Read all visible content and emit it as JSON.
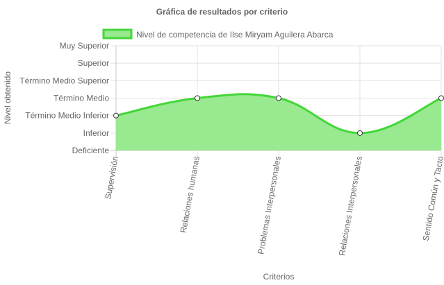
{
  "chart_data": {
    "type": "area",
    "title": "Gráfica de resultados por criterio",
    "xlabel": "Criterios",
    "ylabel": "Nivel obtenido",
    "categories": [
      "Supervisión",
      "Relaciones humanas",
      "Problemas Interpersonales",
      "Relaciones Interpersonales",
      "Sentido Común y Tacto"
    ],
    "y_levels": [
      "Deficiente",
      "Inferior",
      "Término Medio Inferior",
      "Término Medio",
      "Término Medio Superior",
      "Superior",
      "Muy Superior"
    ],
    "ylim": [
      0,
      6
    ],
    "grid": true,
    "legend_position": "top",
    "series": [
      {
        "name": "Nivel de competencia de Ilse Miryam Aguilera Abarca",
        "values": [
          2,
          3,
          3,
          1,
          3
        ],
        "labels": [
          "Término Medio Inferior",
          "Término Medio",
          "Término Medio",
          "Inferior",
          "Término Medio"
        ],
        "fill_color": "#98e98f",
        "line_color": "#44d63a"
      }
    ]
  }
}
